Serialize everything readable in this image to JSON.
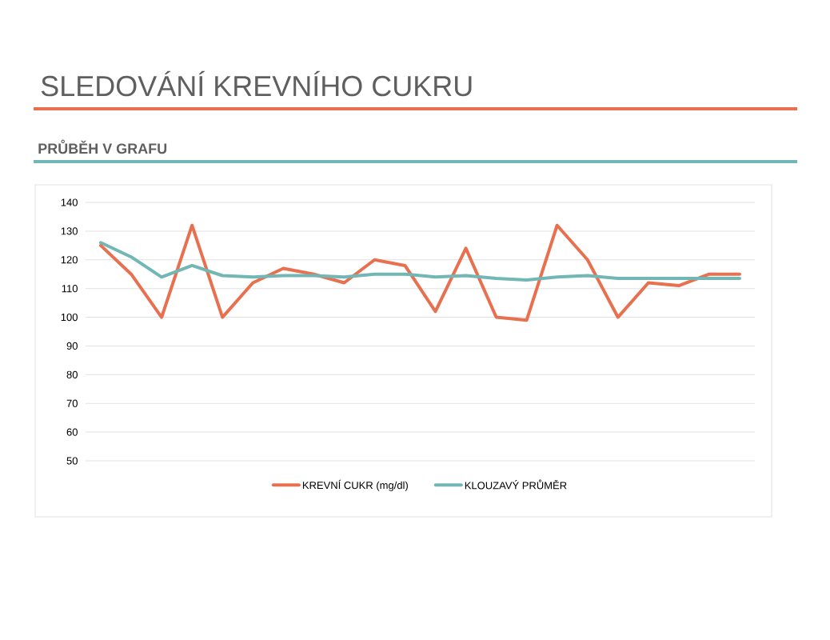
{
  "chart_data": {
    "type": "line",
    "title": "SLEDOVÁNÍ KREVNÍHO CUKRU",
    "subtitle": "PRŮBĚH V GRAFU",
    "categories": [
      null,
      null,
      null,
      null,
      null,
      null,
      null,
      null,
      null,
      null,
      null,
      null,
      null,
      null,
      null,
      null,
      null,
      null,
      null,
      null,
      null,
      null
    ],
    "series": [
      {
        "name": "KREVNÍ CUKR (mg/dl)",
        "color": "#e8704f",
        "values": [
          125,
          115,
          100,
          132,
          100,
          112,
          117,
          115,
          112,
          120,
          118,
          102,
          124,
          100,
          99,
          132,
          120,
          100,
          112,
          111,
          115,
          115
        ]
      },
      {
        "name": "KLOUZAVÝ PRŮMĚR",
        "color": "#72b6b6",
        "values": [
          126,
          121,
          114,
          118,
          114.5,
          114,
          114.5,
          114.5,
          114,
          115,
          115,
          114,
          114.5,
          113.5,
          113,
          114,
          114.5,
          113.5,
          113.5,
          113.5,
          113.5,
          113.5
        ]
      }
    ],
    "ylim": [
      50,
      140
    ],
    "yticks": [
      50,
      60,
      70,
      80,
      90,
      100,
      110,
      120,
      130,
      140
    ],
    "grid": "y",
    "legend": "bottom",
    "marker": "none",
    "line_style": "solid"
  }
}
